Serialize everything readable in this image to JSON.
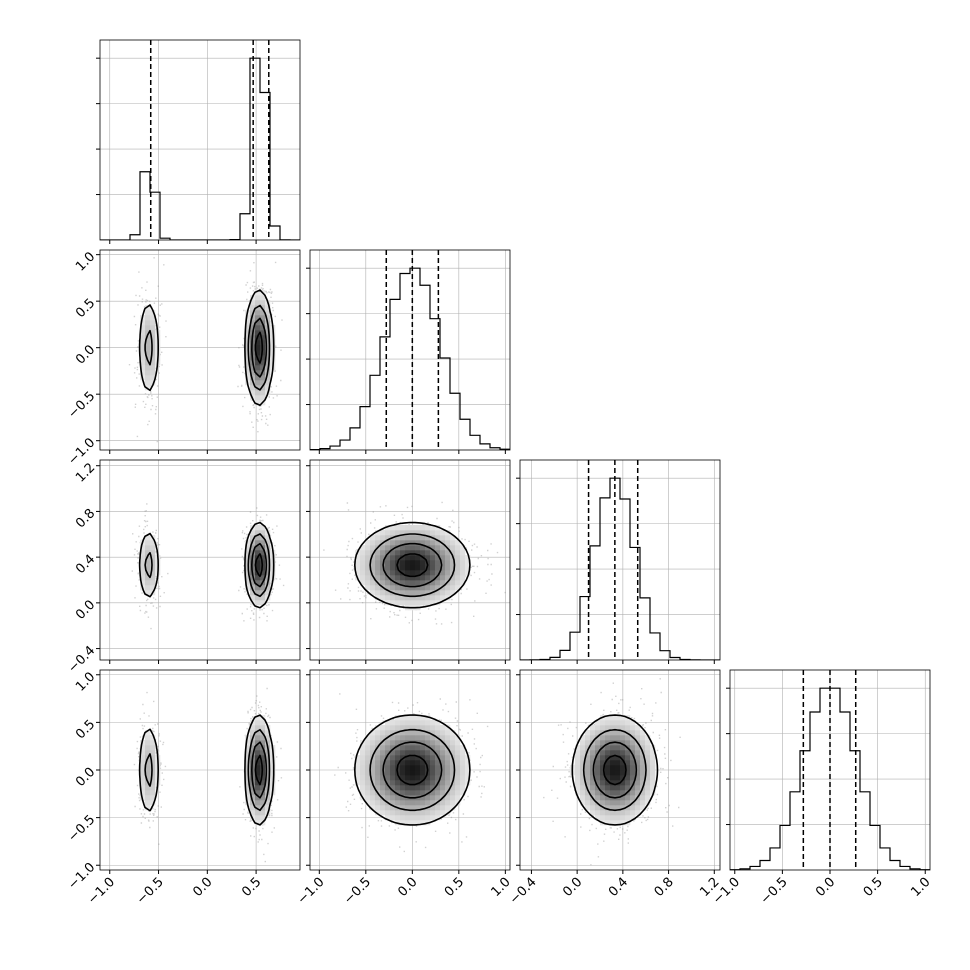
{
  "chart_data": {
    "type": "corner",
    "n_params": 4,
    "ranges": [
      [
        -1.1,
        0.95
      ],
      [
        -1.1,
        1.05
      ],
      [
        -0.5,
        1.25
      ],
      [
        -1.05,
        1.05
      ]
    ],
    "ticks": [
      [
        -1.0,
        -0.5,
        0.0,
        0.5
      ],
      [
        -1.0,
        -0.5,
        0.0,
        0.5,
        1.0
      ],
      [
        -0.4,
        0.0,
        0.4,
        0.8,
        1.2
      ],
      [
        -1.0,
        -0.5,
        0.0,
        0.5,
        1.0
      ]
    ],
    "tick_labels": [
      [
        "−1.0",
        "−0.5",
        "0.0",
        "0.5"
      ],
      [
        "−1.0",
        "−0.5",
        "0.0",
        "0.5",
        "1.0"
      ],
      [
        "−0.4",
        "0.0",
        "0.4",
        "0.8",
        "1.2"
      ],
      [
        "−1.0",
        "−0.5",
        "0.0",
        "0.5",
        "1.0"
      ]
    ],
    "quantiles": [
      [
        -0.58,
        0.47,
        0.63
      ],
      [
        -0.28,
        0.0,
        0.28
      ],
      [
        0.1,
        0.33,
        0.53
      ],
      [
        -0.28,
        0.0,
        0.27
      ]
    ],
    "components": [
      {
        "weight": 0.25,
        "mean": [
          -0.6,
          0.0,
          0.33,
          0.0
        ],
        "std": [
          0.06,
          0.3,
          0.18,
          0.28
        ]
      },
      {
        "weight": 0.75,
        "mean": [
          0.53,
          0.0,
          0.33,
          0.0
        ],
        "std": [
          0.07,
          0.3,
          0.18,
          0.28
        ]
      }
    ],
    "grid": true,
    "colors": {
      "ink": "#000000",
      "grid": "#b0b0b0",
      "point": "#9a9a9a"
    }
  }
}
